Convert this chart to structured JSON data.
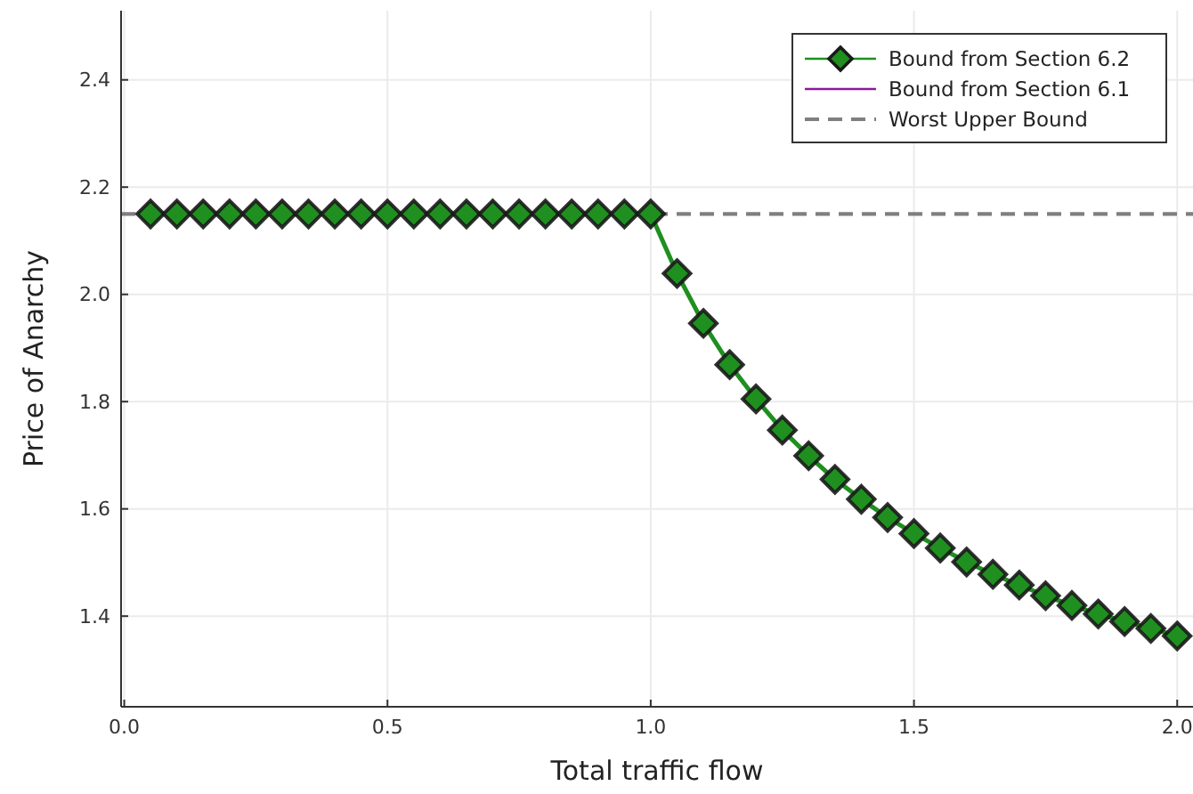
{
  "chart_data": {
    "type": "line",
    "xlabel": "Total traffic flow",
    "ylabel": "Price of Anarchy",
    "x": [
      0.05,
      0.1,
      0.15,
      0.2,
      0.25,
      0.3,
      0.35,
      0.4,
      0.45,
      0.5,
      0.55,
      0.6,
      0.65,
      0.7,
      0.75,
      0.8,
      0.85,
      0.9,
      0.95,
      1.0,
      1.05,
      1.1,
      1.15,
      1.2,
      1.25,
      1.3,
      1.35,
      1.4,
      1.45,
      1.5,
      1.55,
      1.6,
      1.65,
      1.7,
      1.75,
      1.8,
      1.85,
      1.9,
      1.95,
      2.0
    ],
    "series": [
      {
        "name": "Bound from Section 6.2",
        "color": "#1f8f1f",
        "marker": "diamond",
        "values": [
          2.15,
          2.15,
          2.15,
          2.15,
          2.15,
          2.15,
          2.15,
          2.15,
          2.15,
          2.15,
          2.15,
          2.15,
          2.15,
          2.15,
          2.15,
          2.15,
          2.15,
          2.15,
          2.15,
          2.15,
          2.039,
          1.946,
          1.869,
          1.805,
          1.747,
          1.699,
          1.655,
          1.618,
          1.584,
          1.554,
          1.527,
          1.501,
          1.478,
          1.458,
          1.438,
          1.42,
          1.404,
          1.39,
          1.377,
          1.363
        ]
      },
      {
        "name": "Bound from Section 6.1",
        "color": "#8b1a9b",
        "marker": "none",
        "values": [
          null,
          null,
          null,
          null,
          null,
          null,
          null,
          null,
          null,
          null,
          null,
          null,
          null,
          null,
          null,
          null,
          null,
          null,
          null,
          null,
          null,
          null,
          null,
          null,
          null,
          null,
          null,
          null,
          null,
          null,
          null,
          null,
          null,
          null,
          null,
          null,
          null,
          null,
          null,
          null
        ]
      }
    ],
    "ref_lines": [
      {
        "axis": "y",
        "value": 2.15,
        "label": "Worst Upper Bound",
        "color": "#7f7f7f",
        "line_style": "dashed"
      }
    ],
    "xlim": [
      -0.006,
      2.03
    ],
    "xticks": [
      {
        "value": 0,
        "label": "0.0"
      },
      {
        "value": 0.5,
        "label": "0.5"
      },
      {
        "value": 1,
        "label": "1.0"
      },
      {
        "value": 1.5,
        "label": "1.5"
      },
      {
        "value": 2,
        "label": "2.0"
      }
    ],
    "ylim": [
      1.231,
      2.529
    ],
    "yticks": [
      {
        "value": 1.4,
        "label": "1.4"
      },
      {
        "value": 1.6,
        "label": "1.6"
      },
      {
        "value": 1.8,
        "label": "1.8"
      },
      {
        "value": 2,
        "label": "2.0"
      },
      {
        "value": 2.2,
        "label": "2.2"
      },
      {
        "value": 2.4,
        "label": "2.4"
      }
    ],
    "grid": true,
    "legend": "top right"
  }
}
